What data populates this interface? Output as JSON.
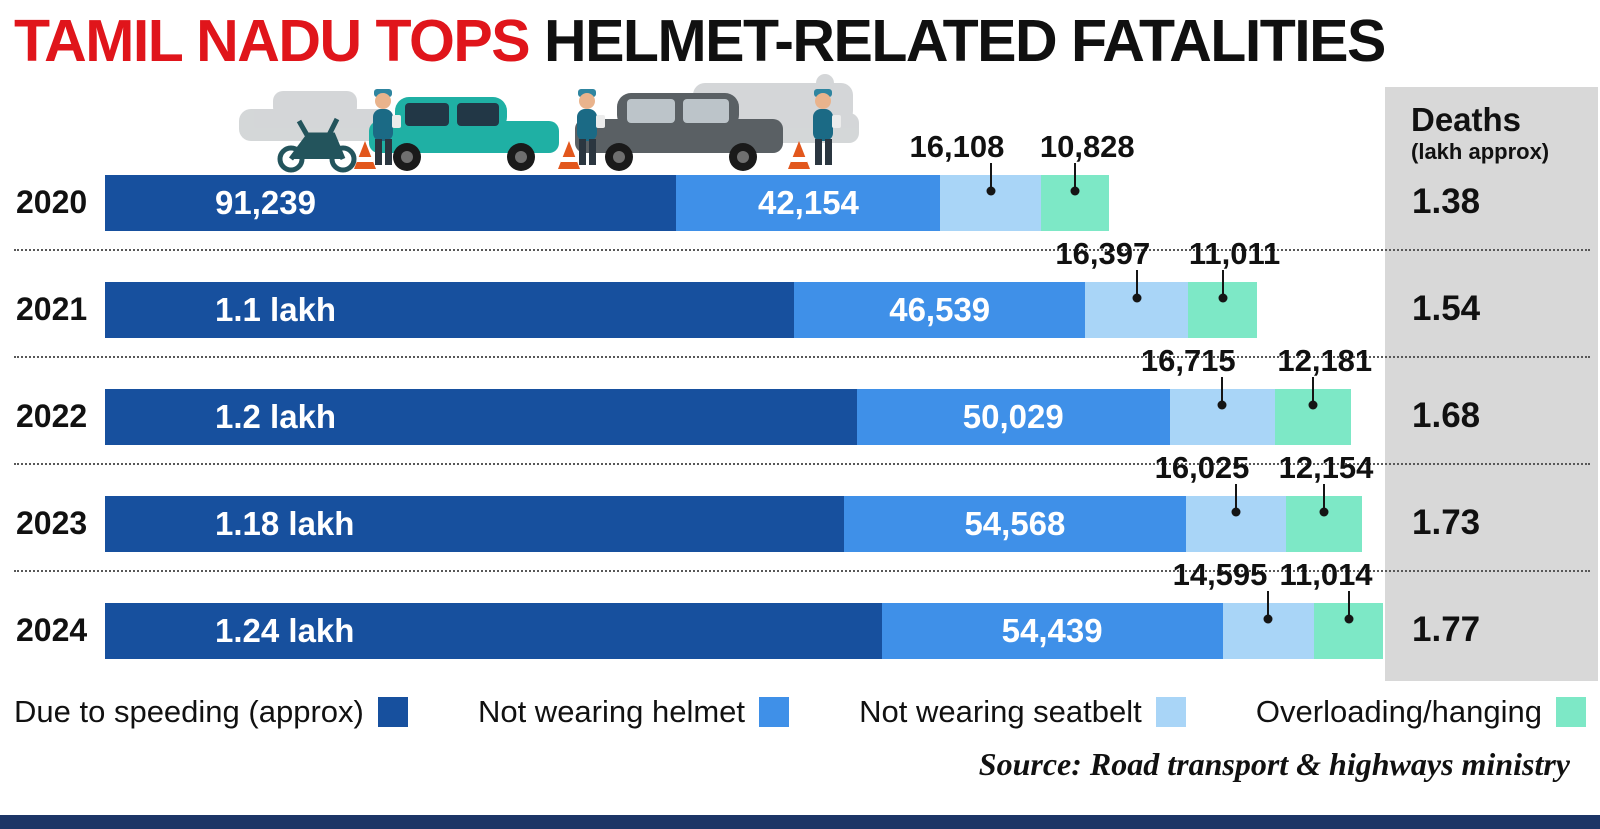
{
  "title": {
    "highlight": "TAMIL NADU TOPS",
    "rest": " HELMET-RELATED FATALITIES"
  },
  "deaths_header": {
    "line1": "Deaths",
    "line2": "(lakh approx)"
  },
  "source": "Source: Road transport & highways ministry",
  "legend": [
    {
      "label": "Due to speeding (approx)",
      "color": "#17509e"
    },
    {
      "label": "Not wearing helmet",
      "color": "#3f90e8"
    },
    {
      "label": "Not wearing seatbelt",
      "color": "#a9d5f7"
    },
    {
      "label": "Overloading/hanging",
      "color": "#7de8c6"
    }
  ],
  "chart_data": {
    "type": "bar",
    "orientation": "horizontal",
    "stacked": true,
    "title": "TAMIL NADU TOPS HELMET-RELATED FATALITIES",
    "unit_note": "Deaths (lakh approx)",
    "categories": [
      "2020",
      "2021",
      "2022",
      "2023",
      "2024"
    ],
    "series": [
      {
        "name": "Due to speeding (approx)",
        "color": "#17509e",
        "values": [
          91239,
          110000,
          120000,
          118000,
          124000
        ],
        "labels": [
          "91,239",
          "1.1 lakh",
          "1.2 lakh",
          "1.18 lakh",
          "1.24 lakh"
        ]
      },
      {
        "name": "Not wearing helmet",
        "color": "#3f90e8",
        "values": [
          42154,
          46539,
          50029,
          54568,
          54439
        ],
        "labels": [
          "42,154",
          "46,539",
          "50,029",
          "54,568",
          "54,439"
        ]
      },
      {
        "name": "Not wearing seatbelt",
        "color": "#a9d5f7",
        "values": [
          16108,
          16397,
          16715,
          16025,
          14595
        ],
        "labels": [
          "16,108",
          "16,397",
          "16,715",
          "16,025",
          "14,595"
        ]
      },
      {
        "name": "Overloading/hanging",
        "color": "#7de8c6",
        "values": [
          10828,
          11011,
          12181,
          12154,
          11014
        ],
        "labels": [
          "10,828",
          "11,011",
          "12,181",
          "12,154",
          "11,014"
        ]
      }
    ],
    "deaths_lakh": [
      "1.38",
      "1.54",
      "1.68",
      "1.73",
      "1.77"
    ],
    "legend_position": "bottom",
    "grid": false
  }
}
